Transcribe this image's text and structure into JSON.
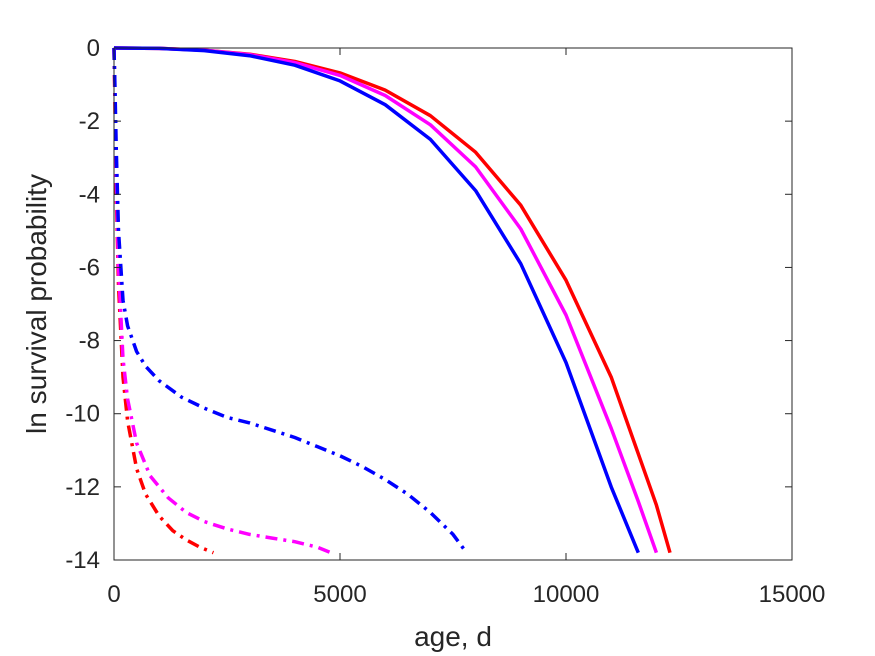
{
  "chart_data": {
    "type": "line",
    "xlabel": "age, d",
    "ylabel": "ln survival probability",
    "xlim": [
      0,
      15000
    ],
    "ylim": [
      -14,
      0
    ],
    "xticks": [
      0,
      5000,
      10000,
      15000
    ],
    "yticks": [
      0,
      -2,
      -4,
      -6,
      -8,
      -10,
      -12,
      -14
    ],
    "grid": false,
    "legend": "none",
    "series": [
      {
        "color": "#ff0000",
        "style": "solid",
        "x": [
          0,
          1000,
          2000,
          3000,
          4000,
          5000,
          6000,
          7000,
          8000,
          9000,
          10000,
          11000,
          12000,
          12300
        ],
        "y": [
          0,
          -0.01,
          -0.06,
          -0.17,
          -0.37,
          -0.68,
          -1.15,
          -1.85,
          -2.85,
          -4.3,
          -6.35,
          -9.0,
          -12.5,
          -13.8
        ]
      },
      {
        "color": "#ff00ff",
        "style": "solid",
        "x": [
          0,
          1000,
          2000,
          3000,
          4000,
          5000,
          6000,
          7000,
          8000,
          9000,
          10000,
          11000,
          11600,
          12000
        ],
        "y": [
          0,
          -0.01,
          -0.06,
          -0.18,
          -0.4,
          -0.75,
          -1.3,
          -2.1,
          -3.25,
          -4.95,
          -7.3,
          -10.4,
          -12.4,
          -13.8
        ]
      },
      {
        "color": "#0000ff",
        "style": "solid",
        "x": [
          0,
          1000,
          2000,
          3000,
          4000,
          5000,
          6000,
          7000,
          8000,
          9000,
          10000,
          11000,
          11600
        ],
        "y": [
          0,
          -0.01,
          -0.07,
          -0.21,
          -0.47,
          -0.9,
          -1.55,
          -2.5,
          -3.9,
          -5.9,
          -8.6,
          -12.0,
          -13.8
        ]
      },
      {
        "color": "#ff0000",
        "style": "dashdot",
        "x": [
          0,
          20,
          50,
          100,
          200,
          300,
          500,
          700,
          1000,
          1300,
          1600,
          1900,
          2200
        ],
        "y": [
          0,
          -1.5,
          -4.0,
          -6.5,
          -9.0,
          -10.2,
          -11.5,
          -12.2,
          -12.8,
          -13.2,
          -13.45,
          -13.65,
          -13.8
        ]
      },
      {
        "color": "#ff00ff",
        "style": "dashdot",
        "x": [
          0,
          20,
          50,
          100,
          200,
          300,
          500,
          800,
          1200,
          1600,
          2000,
          2500,
          3000,
          3500,
          4000,
          4500,
          4800
        ],
        "y": [
          0,
          -1.2,
          -3.5,
          -6.0,
          -8.5,
          -9.6,
          -10.8,
          -11.7,
          -12.3,
          -12.7,
          -12.95,
          -13.15,
          -13.3,
          -13.4,
          -13.5,
          -13.65,
          -13.8
        ]
      },
      {
        "color": "#0000ff",
        "style": "dashdot",
        "x": [
          0,
          20,
          50,
          100,
          200,
          300,
          500,
          700,
          1000,
          1500,
          2000,
          2500,
          3000,
          3500,
          4000,
          4500,
          5000,
          5500,
          6000,
          6500,
          7000,
          7500,
          7800
        ],
        "y": [
          0,
          -1.0,
          -2.8,
          -5.0,
          -6.9,
          -7.6,
          -8.3,
          -8.7,
          -9.1,
          -9.55,
          -9.85,
          -10.1,
          -10.25,
          -10.45,
          -10.65,
          -10.9,
          -11.15,
          -11.45,
          -11.8,
          -12.2,
          -12.7,
          -13.3,
          -13.8
        ]
      }
    ]
  }
}
